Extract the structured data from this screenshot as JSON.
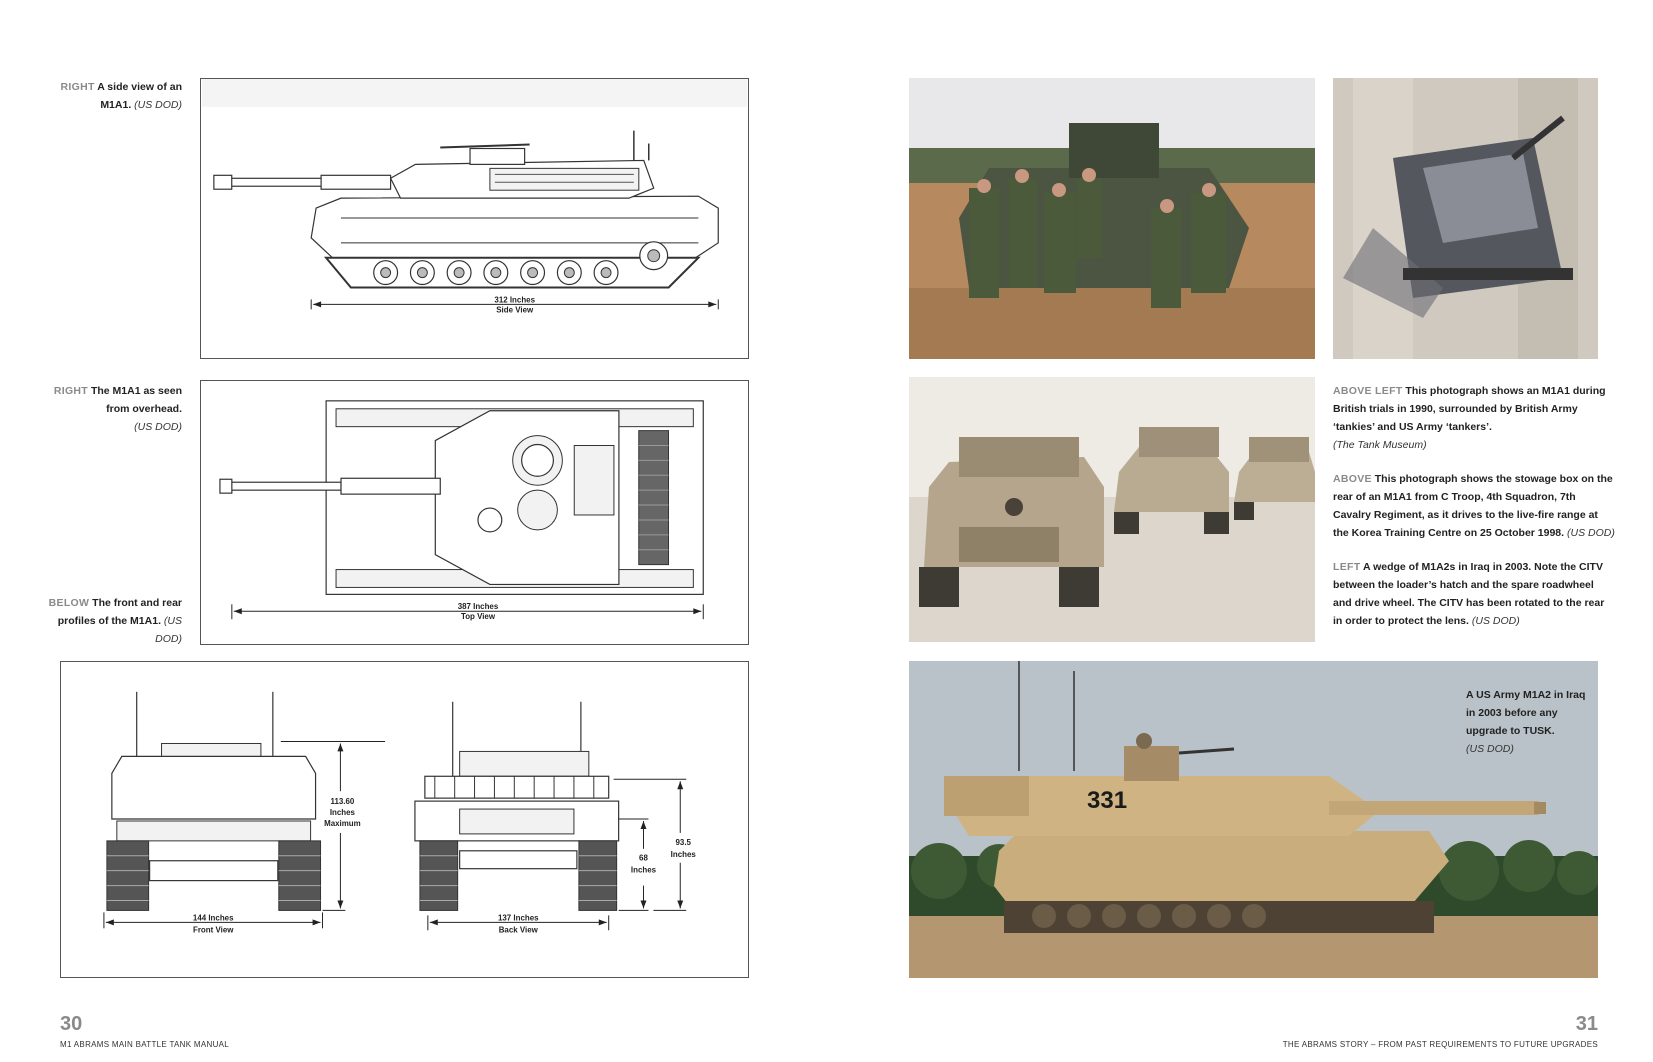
{
  "left_page": {
    "captions": {
      "side": {
        "lead": "RIGHT",
        "text": " A side view of an M1A1. ",
        "credit": "(US DOD)"
      },
      "overhead": {
        "lead": "RIGHT",
        "text": " The M1A1 as seen from overhead.",
        "credit": "(US DOD)"
      },
      "profiles": {
        "lead": "BELOW",
        "text": " The front and rear profiles of the M1A1. ",
        "credit": "(US DOD)"
      }
    },
    "side_view": {
      "dim_value": "312 Inches",
      "dim_label": "Side View"
    },
    "top_view": {
      "dim_value": "387 Inches",
      "dim_label": "Top View"
    },
    "profiles": {
      "front_width": "144 Inches",
      "front_label": "Front View",
      "height_max_1": "113.60",
      "height_max_2": "Inches",
      "height_max_3": "Maximum",
      "back_width": "137 Inches",
      "back_label": "Back View",
      "back_height_1": "68",
      "back_height_2": "Inches",
      "back_overall_1": "93.5",
      "back_overall_2": "Inches"
    },
    "folio": "30",
    "running_head": "M1 ABRAMS MAIN BATTLE TANK MANUAL"
  },
  "right_page": {
    "captions": {
      "above_left": {
        "lead": "ABOVE LEFT",
        "text": " This photograph shows an M1A1 during British trials in 1990, surrounded by British Army ‘tankies’ and US Army ‘tankers’.",
        "credit": "(The Tank Museum)"
      },
      "above": {
        "lead": "ABOVE",
        "text": " This photograph shows the stowage box on the rear of an M1A1 from C Troop, 4th Squadron, 7th Cavalry Regiment, as it drives to the live-fire range at the Korea Training Centre on 25 October 1998. ",
        "credit": "(US DOD)"
      },
      "left": {
        "lead": "LEFT",
        "text": " A wedge of M1A2s in Iraq in 2003. Note the CITV between the loader’s hatch and the spare roadwheel and drive wheel. The CITV has been rotated to the rear in order to protect the lens. ",
        "credit": "(US DOD)"
      },
      "photo_inset": {
        "text": "A US Army M1A2 in Iraq in 2003 before any upgrade to TUSK.",
        "credit": "(US DOD)"
      }
    },
    "hull_number": "331",
    "folio": "31",
    "running_head": "THE ABRAMS STORY – FROM PAST REQUIREMENTS TO FUTURE UPGRADES"
  },
  "colors": {
    "caption_lead": "#8a8a8a",
    "desert_tan": "#c9ad7c",
    "sky": "#b9c2c8"
  }
}
